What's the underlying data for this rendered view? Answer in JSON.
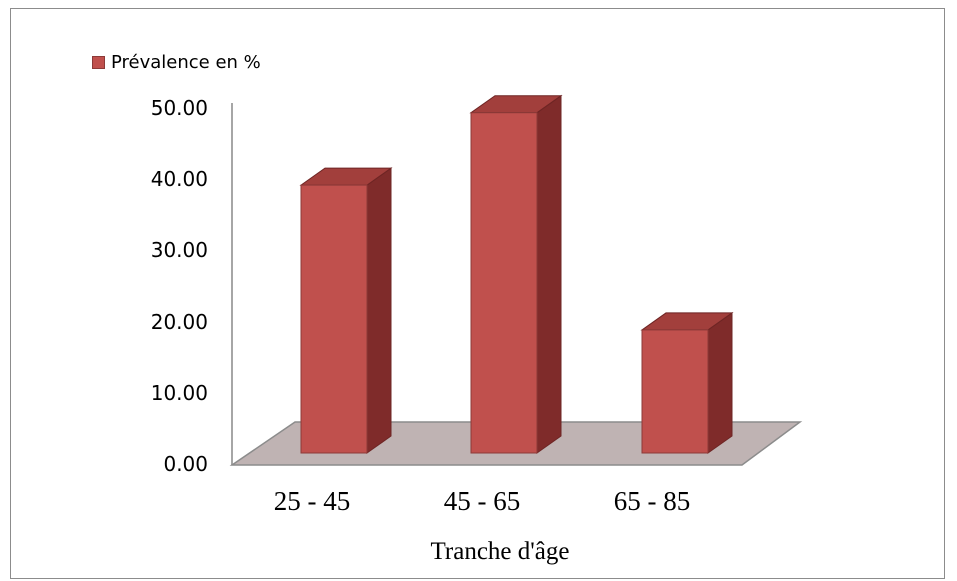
{
  "chart_data": {
    "type": "bar",
    "categories": [
      "25 - 45",
      "45 - 65",
      "65 - 85"
    ],
    "series": [
      {
        "name": "Prévalence en %",
        "values": [
          37.0,
          47.0,
          17.0
        ]
      }
    ],
    "xlabel": "Tranche d'âge",
    "ylabel": "",
    "ylim": [
      0,
      50
    ],
    "yticks": [
      "0.00",
      "10.00",
      "20.00",
      "30.00",
      "40.00",
      "50.00"
    ],
    "grid": false,
    "legend": "top-left",
    "style": "3d-column"
  },
  "colors": {
    "bar_front": "#c0504d",
    "bar_side": "#7f2b2a",
    "bar_top": "#a23f3c",
    "floor": "#bfb3b3",
    "axis": "#a6a6a6"
  }
}
